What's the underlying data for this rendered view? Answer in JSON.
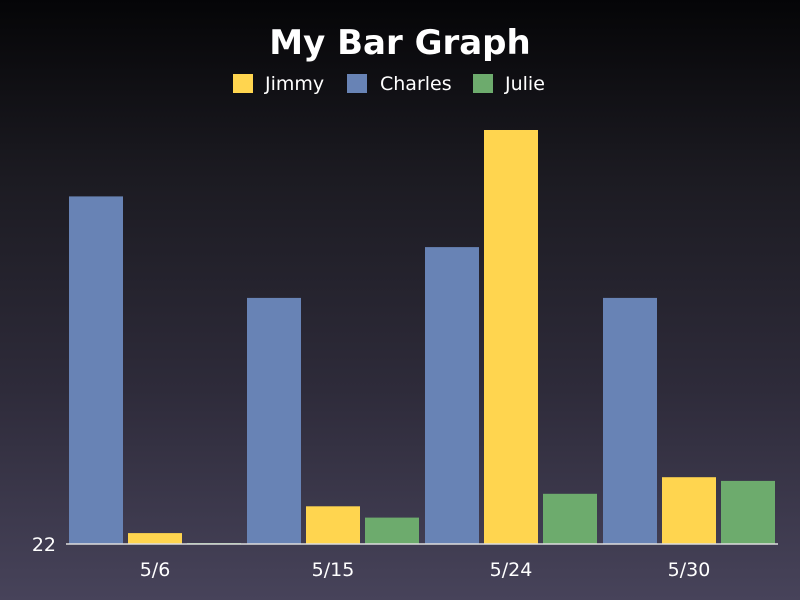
{
  "chart_data": {
    "type": "bar",
    "title": "My Bar Graph",
    "categories": [
      "5/6",
      "5/15",
      "5/24",
      "5/30"
    ],
    "series": [
      {
        "name": "Charles",
        "color": "#6883b5",
        "values": [
          200,
          148,
          174,
          148
        ]
      },
      {
        "name": "Jimmy",
        "color": "#ffd54f",
        "values": [
          27.6,
          41.3,
          234,
          56.2
        ]
      },
      {
        "name": "Julie",
        "color": "#6dab6d",
        "values": [
          22.3,
          35.5,
          47.7,
          54.3
        ]
      }
    ],
    "y_axis": {
      "min": 22,
      "max": 235,
      "ticks": [
        "22"
      ]
    },
    "legend_order": [
      "Jimmy",
      "Charles",
      "Julie"
    ],
    "legend_position": "top-center",
    "grid": false,
    "axis_color": "#dddddd"
  }
}
